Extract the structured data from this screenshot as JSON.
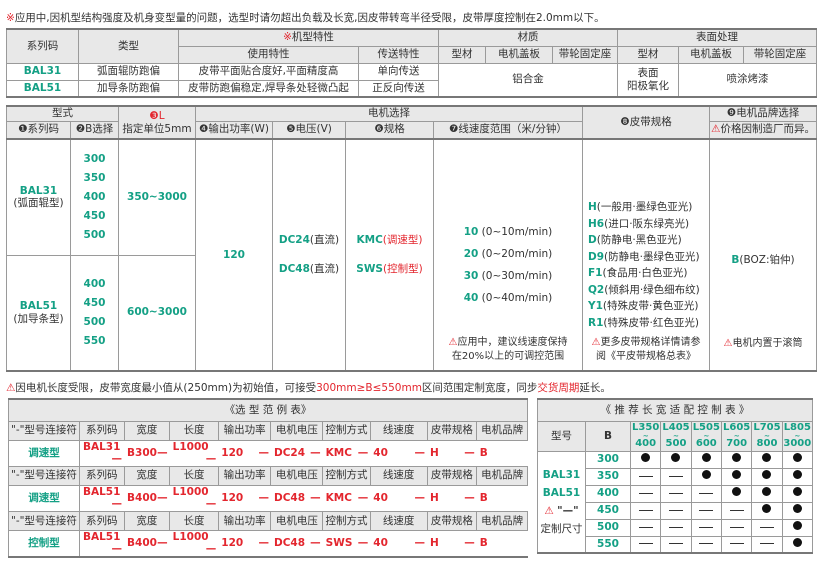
{
  "top_note": {
    "mark": "※",
    "text": "应用中,因机型结构强度及机身变型量的问题，选型时请勿超出负载及长宽,因皮带转弯半径受限，皮带厚度控制在2.0mm以下。"
  },
  "spec_table": {
    "h_series": "系列码",
    "h_type": "类型",
    "h_feature_mark": "※",
    "h_feature": "机型特性",
    "h_material": "材质",
    "h_surface": "表面处理",
    "h_use": "使用特性",
    "h_transfer": "传送特性",
    "h_mat": [
      "型材",
      "电机盖板",
      "带轮固定座"
    ],
    "h_surf": [
      "型材",
      "电机盖板",
      "带轮固定座"
    ],
    "rows": [
      {
        "code": "BAL31",
        "type": "弧面辊防跑偏",
        "use": "皮带平面贴合度好,平面精度高",
        "transfer": "单向传送"
      },
      {
        "code": "BAL51",
        "type": "加导条防跑偏",
        "use": "皮带防跑偏稳定,焊导条处轻微凸起",
        "transfer": "正反向传送"
      }
    ],
    "material": "铝合金",
    "surface_profile": "表面\n阳极氧化",
    "surface_other": "喷涂烤漆"
  },
  "model_table": {
    "h_model": "型式",
    "h_L": "❸L",
    "h_L2": "指定单位5mm",
    "h_motor": "电机选择",
    "h_belt": "❽皮带规格",
    "h_brand": "❾电机品牌选择",
    "h_series": "❶系列码",
    "h_B": "❷B选择",
    "h_power": "❹输出功率(W)",
    "h_voltage": "❺电压(V)",
    "h_spec": "❻规格",
    "h_speed": "❼线速度范围（米/分钟）",
    "h_brand_note": "价格因制造厂而异。",
    "series": [
      {
        "code": "BAL31",
        "name": "(弧面辊型)",
        "B": [
          "300",
          "350",
          "400",
          "450",
          "500"
        ],
        "L": "350~3000"
      },
      {
        "code": "BAL51",
        "name": "(加导条型)",
        "B": [
          "400",
          "450",
          "500",
          "550"
        ],
        "L": "600~3000"
      }
    ],
    "power": "120",
    "voltages": [
      {
        "code": "DC24",
        "desc": "(直流)"
      },
      {
        "code": "DC48",
        "desc": "(直流)"
      }
    ],
    "specs": [
      {
        "code": "KMC",
        "desc": "(调速型)"
      },
      {
        "code": "SWS",
        "desc": "(控制型)"
      }
    ],
    "speeds": [
      {
        "code": "10",
        "desc": "(0~10m/min)"
      },
      {
        "code": "20",
        "desc": "(0~20m/min)"
      },
      {
        "code": "30",
        "desc": "(0~30m/min)"
      },
      {
        "code": "40",
        "desc": "(0~40m/min)"
      }
    ],
    "speed_note": "应用中，建议线速度保持\n在20%以上的可调控范围",
    "belts": [
      {
        "code": "H",
        "desc": "(一般用·墨绿色亚光)"
      },
      {
        "code": "H6",
        "desc": "(进口·阪东绿亮光)"
      },
      {
        "code": "D",
        "desc": "(防静电·黑色亚光)"
      },
      {
        "code": "D9",
        "desc": "(防静电·墨绿色亚光)"
      },
      {
        "code": "F1",
        "desc": "(食品用·白色亚光)"
      },
      {
        "code": "Q2",
        "desc": "(倾斜用·绿色细布纹)"
      },
      {
        "code": "Y1",
        "desc": "(特殊皮带·黄色亚光)"
      },
      {
        "code": "R1",
        "desc": "(特殊皮带·红色亚光)"
      }
    ],
    "belt_note": "更多皮带规格详情请参\n阅《平皮带规格总表》",
    "brand": {
      "code": "B",
      "desc": "(BOZ:铂仲)"
    },
    "brand_note": "电机内置于滚筒"
  },
  "width_note": {
    "a": "因电机长度受限，皮带宽度最小值从(250mm)为初始值，可接受",
    "b": "300mm≥B≤550mm",
    "c": "区间范围定制宽度，同步",
    "d": "交货周期",
    "e": "延长。"
  },
  "example_table": {
    "title": "《选 型 范 例 表》",
    "headers": [
      "\"-\"型号连接符",
      "系列码",
      "宽度",
      "长度",
      "输出功率",
      "电机电压",
      "控制方式",
      "线速度",
      "皮带规格",
      "电机品牌"
    ],
    "rows": [
      {
        "type": "调速型",
        "values": [
          "BAL31",
          "B300",
          "L1000",
          "120",
          "DC24",
          "KMC",
          "40",
          "H",
          "B"
        ]
      },
      {
        "type": "调速型",
        "values": [
          "BAL51",
          "B400",
          "L1000",
          "120",
          "DC48",
          "KMC",
          "40",
          "H",
          "B"
        ]
      },
      {
        "type": "控制型",
        "values": [
          "BAL51",
          "B400",
          "L1000",
          "120",
          "DC48",
          "SWS",
          "40",
          "H",
          "B"
        ]
      }
    ]
  },
  "recommend_table": {
    "title": "《 推 荐 长 宽 适 配 控 制 表 》",
    "h_model": "型号",
    "h_B": "B",
    "length_ranges": [
      [
        "L350",
        "400"
      ],
      [
        "L405",
        "500"
      ],
      [
        "L505",
        "600"
      ],
      [
        "L605",
        "700"
      ],
      [
        "L705",
        "800"
      ],
      [
        "L805",
        "3000"
      ]
    ],
    "models": [
      "BAL31",
      "BAL51"
    ],
    "custom_mark": "\"—\"",
    "custom_label": "定制尺寸",
    "rows": [
      {
        "B": "300",
        "fit": [
          1,
          1,
          1,
          1,
          1,
          1
        ]
      },
      {
        "B": "350",
        "fit": [
          0,
          0,
          1,
          1,
          1,
          1
        ]
      },
      {
        "B": "400",
        "fit": [
          0,
          0,
          0,
          1,
          1,
          1
        ]
      },
      {
        "B": "450",
        "fit": [
          0,
          0,
          0,
          0,
          1,
          1
        ]
      },
      {
        "B": "500",
        "fit": [
          0,
          0,
          0,
          0,
          0,
          1
        ]
      },
      {
        "B": "550",
        "fit": [
          0,
          0,
          0,
          0,
          0,
          1
        ]
      }
    ]
  },
  "colors": {
    "green": "#14a085",
    "red": "#e3262e",
    "header_bg": "#e8e8e8"
  }
}
